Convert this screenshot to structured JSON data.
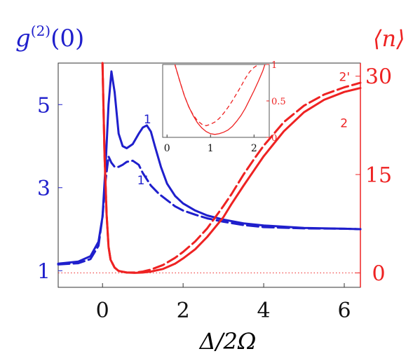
{
  "chart_data": [
    {
      "type": "line",
      "xlabel": "Δ/2Ω",
      "xlim": [
        -1.1,
        6.4
      ],
      "x_ticks": [
        0,
        2,
        4,
        6
      ],
      "grid": false,
      "left_axis": {
        "label": "g⁽²⁾(0)",
        "label_base": "g",
        "label_sup": "(2)",
        "label_tail": "(0)",
        "color": "#1f1fcc",
        "ylim": [
          0.6,
          6
        ],
        "ticks": [
          1,
          3,
          5
        ]
      },
      "right_axis": {
        "label": "⟨n⟩",
        "color": "#ee2222",
        "ylim": [
          -2.2,
          32
        ],
        "ticks": [
          0,
          15,
          30
        ]
      },
      "reference_line": {
        "axis": "right",
        "y": 0,
        "style": "dotted",
        "color": "#ee2222"
      },
      "series": [
        {
          "name": "1",
          "axis": "left",
          "style": "solid",
          "color": "#1f1fcc",
          "x": [
            -1.1,
            -0.6,
            -0.3,
            -0.1,
            0.0,
            0.08,
            0.15,
            0.22,
            0.3,
            0.4,
            0.5,
            0.6,
            0.75,
            0.9,
            1.0,
            1.1,
            1.2,
            1.3,
            1.45,
            1.6,
            1.8,
            2.0,
            2.3,
            2.6,
            3.0,
            3.5,
            4.0,
            5.0,
            6.0,
            6.4
          ],
          "y": [
            1.17,
            1.22,
            1.35,
            1.7,
            2.3,
            3.6,
            5.0,
            5.8,
            5.3,
            4.3,
            4.0,
            3.95,
            4.05,
            4.3,
            4.45,
            4.5,
            4.35,
            4.0,
            3.5,
            3.1,
            2.8,
            2.62,
            2.45,
            2.33,
            2.23,
            2.14,
            2.09,
            2.03,
            2.01,
            2.0
          ]
        },
        {
          "name": "1'",
          "axis": "left",
          "style": "dashed",
          "color": "#1f1fcc",
          "x": [
            -1.1,
            -0.6,
            -0.3,
            -0.1,
            0.0,
            0.08,
            0.15,
            0.22,
            0.3,
            0.4,
            0.5,
            0.6,
            0.75,
            0.9,
            1.0,
            1.2,
            1.4,
            1.6,
            1.8,
            2.0,
            2.3,
            2.6,
            3.0,
            3.5,
            4.0,
            5.0,
            6.0,
            6.4
          ],
          "y": [
            1.15,
            1.18,
            1.28,
            1.6,
            2.3,
            3.2,
            3.75,
            3.6,
            3.5,
            3.5,
            3.55,
            3.62,
            3.65,
            3.55,
            3.35,
            3.05,
            2.85,
            2.7,
            2.55,
            2.45,
            2.35,
            2.26,
            2.18,
            2.1,
            2.05,
            2.02,
            2.01,
            2.0
          ]
        },
        {
          "name": "2",
          "axis": "right",
          "style": "solid",
          "color": "#ee2222",
          "x": [
            0.0,
            0.05,
            0.1,
            0.15,
            0.2,
            0.3,
            0.4,
            0.6,
            0.8,
            1.0,
            1.2,
            1.5,
            1.8,
            2.0,
            2.3,
            2.6,
            3.0,
            3.2,
            3.5,
            3.8,
            4.0,
            4.5,
            5.0,
            5.5,
            6.0,
            6.4
          ],
          "y": [
            32,
            18,
            9,
            4,
            2,
            0.8,
            0.3,
            0.05,
            0.0,
            0.05,
            0.2,
            0.6,
            1.4,
            2.2,
            3.6,
            5.5,
            8.5,
            10.5,
            13.3,
            16.0,
            17.8,
            21.6,
            24.5,
            26.4,
            27.6,
            28.2
          ]
        },
        {
          "name": "2'",
          "axis": "right",
          "style": "dashed",
          "color": "#ee2222",
          "x": [
            0.0,
            0.05,
            0.1,
            0.15,
            0.2,
            0.3,
            0.4,
            0.6,
            0.8,
            1.0,
            1.2,
            1.5,
            1.8,
            2.0,
            2.3,
            2.6,
            3.0,
            3.2,
            3.5,
            3.8,
            4.0,
            4.5,
            5.0,
            5.5,
            6.0,
            6.4
          ],
          "y": [
            32,
            18,
            9,
            4,
            2,
            0.8,
            0.3,
            0.05,
            0.05,
            0.2,
            0.5,
            1.2,
            2.3,
            3.2,
            4.8,
            6.8,
            10.2,
            12.0,
            15.0,
            17.7,
            19.4,
            23.0,
            25.5,
            27.2,
            28.3,
            29.0
          ]
        }
      ],
      "labels": [
        {
          "text": "1",
          "color": "#1f1fcc",
          "at": [
            1.02,
            4.55
          ]
        },
        {
          "text": "1'",
          "color": "#1f1fcc",
          "at": [
            0.86,
            3.08
          ]
        },
        {
          "text": "2'",
          "color": "#ee2222",
          "at": [
            5.87,
            29.3
          ]
        },
        {
          "text": "2",
          "color": "#ee2222",
          "at": [
            5.9,
            22.2
          ]
        }
      ]
    },
    {
      "type": "line",
      "role": "inset",
      "xlim": [
        -0.1,
        2.35
      ],
      "ylim": [
        0,
        1
      ],
      "x_ticks": [
        0,
        1,
        2
      ],
      "y_ticks": [
        0,
        0.5,
        1
      ],
      "y_tick_labels": [
        "0",
        "0.5",
        "1"
      ],
      "color": "#ee2222",
      "series": [
        {
          "name": "",
          "style": "solid",
          "color": "#ee2222",
          "x": [
            0.18,
            0.3,
            0.4,
            0.5,
            0.6,
            0.7,
            0.8,
            0.9,
            1.0,
            1.1,
            1.2,
            1.3,
            1.4,
            1.5,
            1.6,
            1.7,
            1.8,
            1.9,
            2.0,
            2.1,
            2.2,
            2.25
          ],
          "y": [
            1.0,
            0.76,
            0.57,
            0.42,
            0.3,
            0.2,
            0.13,
            0.08,
            0.05,
            0.04,
            0.05,
            0.07,
            0.1,
            0.15,
            0.22,
            0.3,
            0.4,
            0.52,
            0.64,
            0.77,
            0.91,
            1.0
          ]
        },
        {
          "name": "",
          "style": "dashed",
          "color": "#ee2222",
          "x": [
            0.18,
            0.3,
            0.4,
            0.5,
            0.6,
            0.7,
            0.8,
            0.9,
            1.0,
            1.1,
            1.2,
            1.3,
            1.4,
            1.5,
            1.6,
            1.7,
            1.8,
            1.9,
            2.0,
            2.1
          ],
          "y": [
            1.0,
            0.76,
            0.57,
            0.42,
            0.31,
            0.23,
            0.18,
            0.16,
            0.18,
            0.21,
            0.26,
            0.33,
            0.41,
            0.5,
            0.6,
            0.7,
            0.81,
            0.9,
            0.96,
            1.0
          ]
        }
      ]
    }
  ]
}
